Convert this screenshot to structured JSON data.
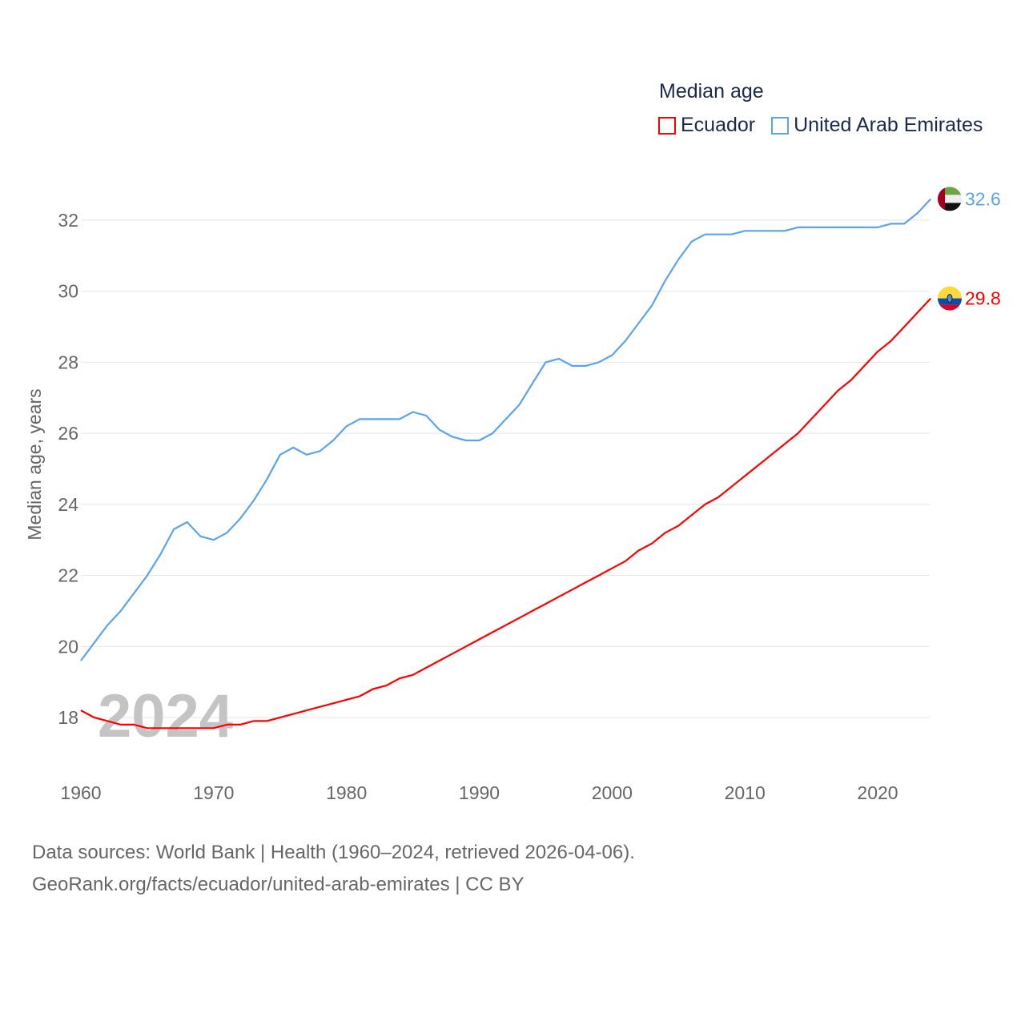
{
  "chart_data": {
    "type": "line",
    "title": "",
    "xlabel": "",
    "ylabel": "Median age, years",
    "xlim": [
      1960,
      2024
    ],
    "ylim": [
      17,
      33
    ],
    "x_ticks": [
      "1960",
      "1970",
      "1980",
      "1990",
      "2000",
      "2010",
      "2020"
    ],
    "y_ticks": [
      "18",
      "20",
      "22",
      "24",
      "26",
      "28",
      "30",
      "32"
    ],
    "grid": true,
    "legend_title": "Median age",
    "legend_position": "top-right",
    "year_watermark": "2024",
    "x": [
      1960,
      1961,
      1962,
      1963,
      1964,
      1965,
      1966,
      1967,
      1968,
      1969,
      1970,
      1971,
      1972,
      1973,
      1974,
      1975,
      1976,
      1977,
      1978,
      1979,
      1980,
      1981,
      1982,
      1983,
      1984,
      1985,
      1986,
      1987,
      1988,
      1989,
      1990,
      1991,
      1992,
      1993,
      1994,
      1995,
      1996,
      1997,
      1998,
      1999,
      2000,
      2001,
      2002,
      2003,
      2004,
      2005,
      2006,
      2007,
      2008,
      2009,
      2010,
      2011,
      2012,
      2013,
      2014,
      2015,
      2016,
      2017,
      2018,
      2019,
      2020,
      2021,
      2022,
      2023,
      2024
    ],
    "series": [
      {
        "name": "Ecuador",
        "color": "#ff0000",
        "end_label": "29.8",
        "flag": "ecuador-flag",
        "values": [
          18.2,
          18.0,
          17.9,
          17.8,
          17.8,
          17.7,
          17.7,
          17.7,
          17.7,
          17.7,
          17.7,
          17.8,
          17.8,
          17.9,
          17.9,
          18.0,
          18.1,
          18.2,
          18.3,
          18.4,
          18.5,
          18.6,
          18.8,
          18.9,
          19.1,
          19.2,
          19.4,
          19.6,
          19.8,
          20.0,
          20.2,
          20.4,
          20.6,
          20.8,
          21.0,
          21.2,
          21.4,
          21.6,
          21.8,
          22.0,
          22.2,
          22.4,
          22.7,
          22.9,
          23.2,
          23.4,
          23.7,
          24.0,
          24.2,
          24.5,
          24.8,
          25.1,
          25.4,
          25.7,
          26.0,
          26.4,
          26.8,
          27.2,
          27.5,
          27.9,
          28.3,
          28.6,
          29.0,
          29.4,
          29.8
        ]
      },
      {
        "name": "United Arab Emirates",
        "color": "#5ba4ec",
        "end_label": "32.6",
        "flag": "uae-flag",
        "values": [
          19.6,
          20.1,
          20.6,
          21.0,
          21.5,
          22.0,
          22.6,
          23.3,
          23.5,
          23.1,
          23.0,
          23.2,
          23.6,
          24.1,
          24.7,
          25.4,
          25.6,
          25.4,
          25.5,
          25.8,
          26.2,
          26.4,
          26.4,
          26.4,
          26.4,
          26.6,
          26.5,
          26.1,
          25.9,
          25.8,
          25.8,
          26.0,
          26.4,
          26.8,
          27.4,
          28.0,
          28.1,
          27.9,
          27.9,
          28.0,
          28.2,
          28.6,
          29.1,
          29.6,
          30.3,
          30.9,
          31.4,
          31.6,
          31.6,
          31.6,
          31.7,
          31.7,
          31.7,
          31.7,
          31.8,
          31.8,
          31.8,
          31.8,
          31.8,
          31.8,
          31.8,
          31.9,
          31.9,
          32.2,
          32.6
        ]
      }
    ]
  },
  "source": {
    "line1": "Data sources: World Bank | Health (1960–2024, retrieved 2026-04-06).",
    "line2": "GeoRank.org/facts/ecuador/united-arab-emirates | CC BY"
  }
}
